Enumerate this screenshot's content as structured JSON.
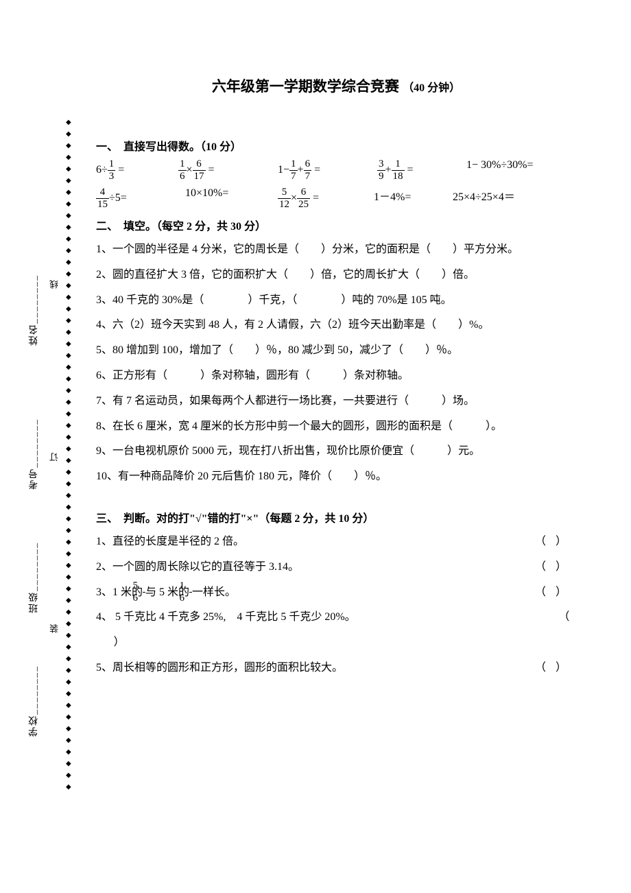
{
  "title_main": "六年级第一学期数学综合竞赛",
  "title_time": "（40 分钟）",
  "section1": {
    "head": "一、　直接写出得数。（10 分）",
    "row1": {
      "c1_pre": "6÷",
      "c1_f_n": "1",
      "c1_f_d": "3",
      "c1_post": " =",
      "c2_f1_n": "1",
      "c2_f1_d": "6",
      "c2_mid": "×",
      "c2_f2_n": "6",
      "c2_f2_d": "17",
      "c2_post": " =",
      "c3_pre": "1−",
      "c3_f1_n": "1",
      "c3_f1_d": "7",
      "c3_mid": "+",
      "c3_f2_n": "6",
      "c3_f2_d": "7",
      "c3_post": " =",
      "c4_f1_n": "3",
      "c4_f1_d": "9",
      "c4_mid": "+",
      "c4_f2_n": "1",
      "c4_f2_d": "18",
      "c4_post": " =",
      "c5": "1− 30%÷30%="
    },
    "row2": {
      "c1_f_n": "4",
      "c1_f_d": "15",
      "c1_post": "÷5=",
      "c2": "10×10%=",
      "c3_f1_n": "5",
      "c3_f1_d": "12",
      "c3_mid": "×",
      "c3_f2_n": "6",
      "c3_f2_d": "25",
      "c3_post": " =",
      "c4": "1－4%=",
      "c5": "25×4÷25×4＝"
    }
  },
  "section2": {
    "head": "二、　填空。（每空 2 分，共 30 分）",
    "q1": "1、一个圆的半径是 4 分米，它的周长是（　　）分米，它的面积是（　　）平方分米。",
    "q2": "2、圆的直径扩大 3 倍，它的面积扩大（　　）倍，它的周长扩大（　　）倍。",
    "q3": "3、40 千克的 30%是（　　　　）千克，（　　　　）吨的 70%是 105 吨。",
    "q4": "4、六（2）班今天实到 48 人，有 2 人请假，六（2）班今天出勤率是（　　）%。",
    "q5": "5、80 增加到 100，增加了（　　）％，80 减少到 50，减少了（　　）％。",
    "q6": "6、正方形有（　　　）条对称轴，圆形有（　　　）条对称轴。",
    "q7": "7、有 7 名运动员，如果每两个人都进行一场比赛，一共要进行（　　　）场。",
    "q8": "8、在长 6 厘米，宽 4 厘米的长方形中剪一个最大的圆形，圆形的面积是（　　　）。",
    "q9": "9、一台电视机原价 5000 元，现在打八折出售，现价比原价便宜（　　　）元。",
    "q10": "10、有一种商品降价 20 元后售价 180 元，降价（　　）％。"
  },
  "section3": {
    "head": "三、　判断。对的打\"√\"错的打\"×\"（每题 2 分，共 10 分）",
    "q1": "1、直径的长度是半径的 2 倍。",
    "q2": "2、一个圆的周长除以它的直径等于 3.14。",
    "q3_pre": "3、1 米的",
    "q3_f1_n": "5",
    "q3_f1_d": "6",
    "q3_mid": "与 5 米的",
    "q3_f2_n": "1",
    "q3_f2_d": "6",
    "q3_post": "一样长。",
    "q4": "4、 5 千克比 4 千克多 25%,　4 千克比 5 千克少 20%。",
    "q5": "5、周长相等的圆形和正方形，圆形的面积比较大。",
    "paren": "（）",
    "close_paren": "）"
  },
  "binding": {
    "school": "学校",
    "class": "班级",
    "number": "考号",
    "name": "姓名",
    "underline": "________",
    "zhuang": "装",
    "ding": "订",
    "xian": "线"
  }
}
